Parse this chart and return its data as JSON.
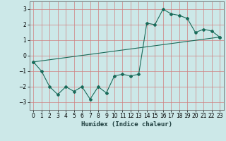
{
  "xlabel": "Humidex (Indice chaleur)",
  "ylabel": "",
  "background_color": "#cce8e8",
  "grid_color": "#d08080",
  "line_color": "#1a6b5a",
  "xlim": [
    -0.5,
    23.5
  ],
  "ylim": [
    -3.5,
    3.5
  ],
  "yticks": [
    -3,
    -2,
    -1,
    0,
    1,
    2,
    3
  ],
  "xticks": [
    0,
    1,
    2,
    3,
    4,
    5,
    6,
    7,
    8,
    9,
    10,
    11,
    12,
    13,
    14,
    15,
    16,
    17,
    18,
    19,
    20,
    21,
    22,
    23
  ],
  "line1_x": [
    0,
    1,
    2,
    3,
    4,
    5,
    6,
    7,
    8,
    9,
    10,
    11,
    12,
    13,
    14,
    15,
    16,
    17,
    18,
    19,
    20,
    21,
    22,
    23
  ],
  "line1_y": [
    -0.4,
    -1.0,
    -2.0,
    -2.5,
    -2.0,
    -2.3,
    -2.0,
    -2.8,
    -2.0,
    -2.4,
    -1.3,
    -1.2,
    -1.3,
    -1.2,
    2.1,
    2.0,
    3.0,
    2.7,
    2.6,
    2.4,
    1.5,
    1.7,
    1.6,
    1.2
  ],
  "line2_x": [
    0,
    23
  ],
  "line2_y": [
    -0.4,
    1.2
  ]
}
